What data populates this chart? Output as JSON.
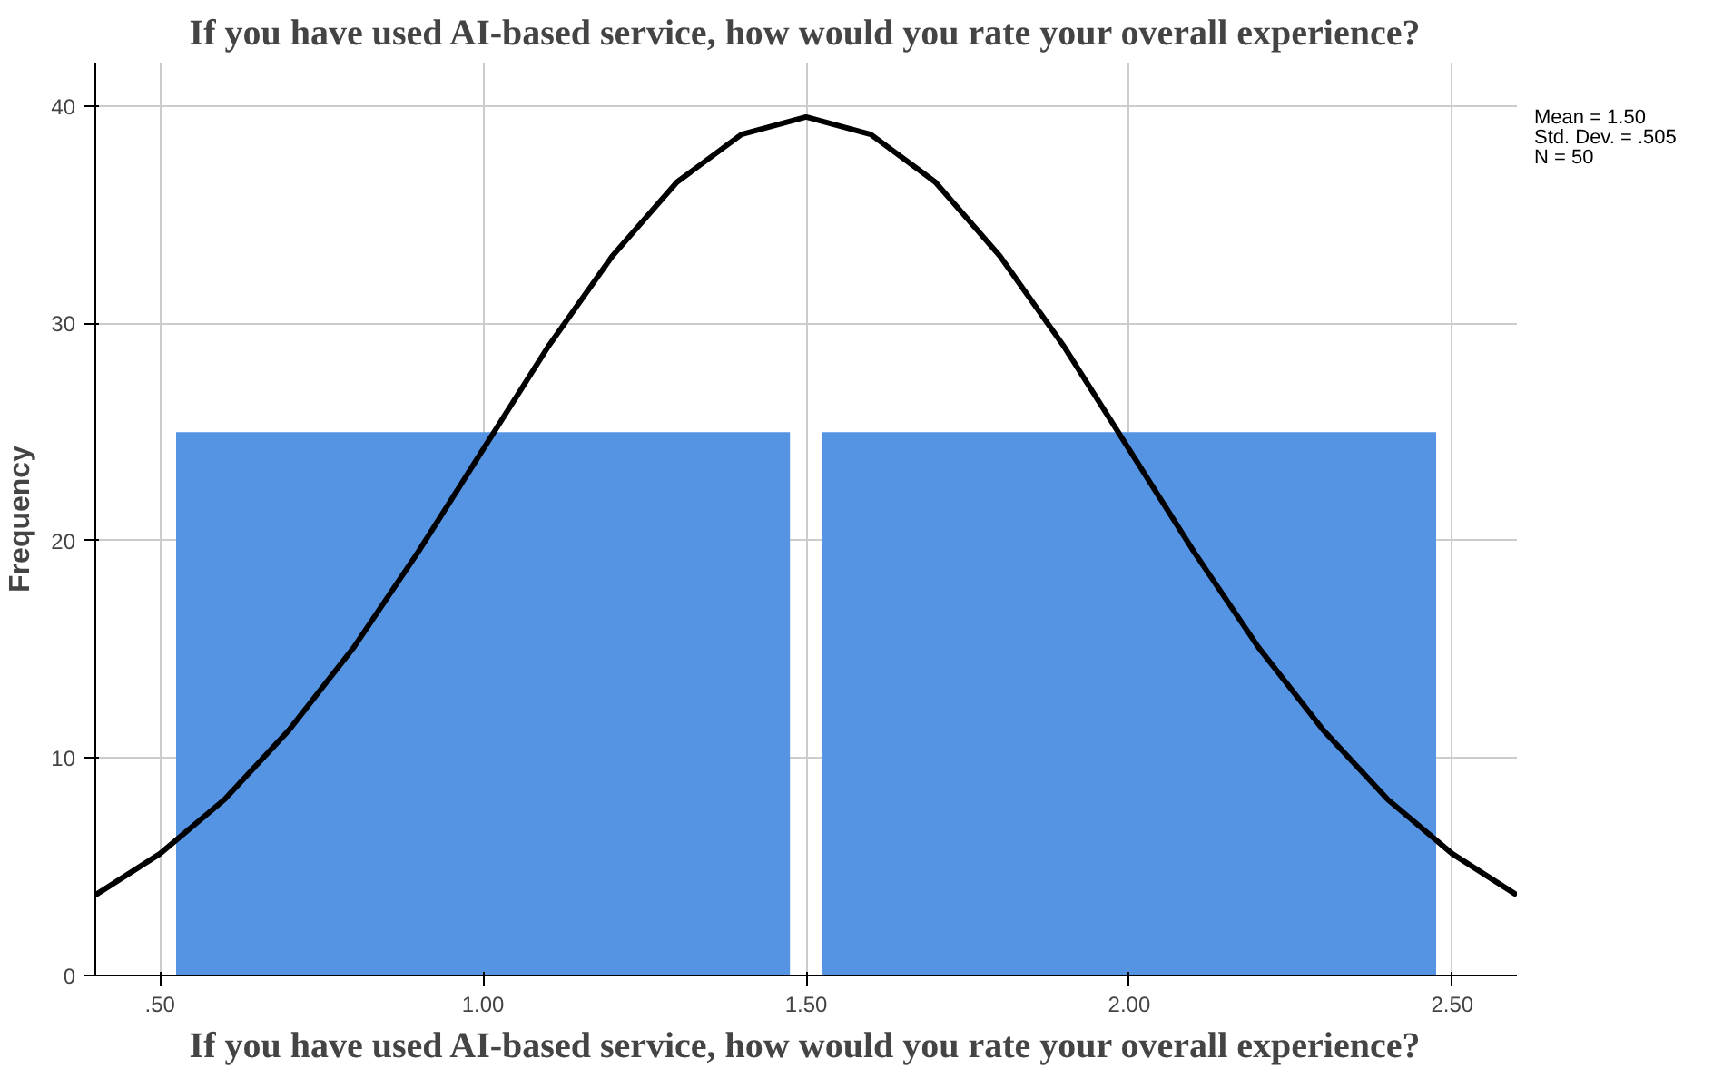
{
  "chart_data": {
    "type": "histogram",
    "title": "If you have used AI-based service, how would you rate your overall experience?",
    "xlabel": "If you have used AI-based service, how would you rate your overall experience?",
    "ylabel": "Frequency",
    "series": [
      {
        "bins": [
          0.5,
          1.5,
          2.5
        ],
        "values": [
          25,
          25
        ],
        "color": "#5593e3"
      },
      {
        "type": "line",
        "color": "#000000",
        "x": [
          0.4,
          0.5,
          0.6,
          0.7,
          0.8,
          0.9,
          1.0,
          1.1,
          1.2,
          1.3,
          1.4,
          1.5,
          1.6,
          1.7,
          1.8,
          1.9,
          2.0,
          2.1,
          2.2,
          2.3,
          2.4,
          2.5,
          2.6
        ],
        "values": [
          3.7,
          5.6,
          8.1,
          11.3,
          15.1,
          19.5,
          24.2,
          28.9,
          33.1,
          36.5,
          38.7,
          39.5,
          38.7,
          36.5,
          33.1,
          28.9,
          24.2,
          19.5,
          15.1,
          11.3,
          8.1,
          5.6,
          3.7
        ]
      }
    ],
    "annotations": [
      "Mean = 1.50",
      "Std. Dev. = .505",
      "N = 50"
    ],
    "xlim": [
      0.4,
      2.6
    ],
    "ylim": [
      0,
      42
    ],
    "xticks": [
      {
        "value": 0.5,
        "label": ".50"
      },
      {
        "value": 1.0,
        "label": "1.00"
      },
      {
        "value": 1.5,
        "label": "1.50"
      },
      {
        "value": 2.0,
        "label": "2.00"
      },
      {
        "value": 2.5,
        "label": "2.50"
      }
    ],
    "yticks": [
      0,
      10,
      20,
      30,
      40
    ],
    "grid": true,
    "line_style": "solid"
  }
}
